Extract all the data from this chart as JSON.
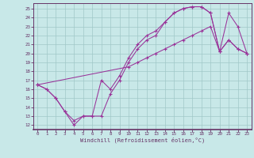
{
  "xlabel": "Windchill (Refroidissement éolien,°C)",
  "bg_color": "#c8e8e8",
  "grid_color": "#a0c8c8",
  "line_color": "#993399",
  "spine_color": "#663366",
  "tick_color": "#663366",
  "xlim_min": -0.5,
  "xlim_max": 23.5,
  "ylim_min": 11.5,
  "ylim_max": 25.6,
  "xticks": [
    0,
    1,
    2,
    3,
    4,
    5,
    6,
    7,
    8,
    9,
    10,
    11,
    12,
    13,
    14,
    15,
    16,
    17,
    18,
    19,
    20,
    21,
    22,
    23
  ],
  "yticks": [
    12,
    13,
    14,
    15,
    16,
    17,
    18,
    19,
    20,
    21,
    22,
    23,
    24,
    25
  ],
  "line1_x": [
    0,
    1,
    2,
    3,
    4,
    5,
    6,
    7,
    8,
    9,
    10,
    11,
    12,
    13,
    14,
    15,
    16,
    17,
    18,
    19,
    20,
    21,
    22,
    23
  ],
  "line1_y": [
    16.5,
    16.0,
    15.0,
    13.5,
    12.0,
    13.0,
    13.0,
    13.0,
    15.5,
    17.0,
    19.0,
    20.5,
    21.5,
    22.0,
    23.5,
    24.5,
    25.0,
    25.2,
    25.2,
    24.5,
    20.2,
    21.5,
    20.5,
    20.0
  ],
  "line2_x": [
    0,
    1,
    2,
    3,
    4,
    5,
    6,
    7,
    8,
    9,
    10,
    11,
    12,
    13,
    14,
    15,
    16,
    17,
    18,
    19,
    20,
    21,
    22,
    23
  ],
  "line2_y": [
    16.5,
    16.0,
    15.0,
    13.5,
    12.5,
    13.0,
    13.0,
    17.0,
    16.0,
    17.5,
    19.5,
    21.0,
    22.0,
    22.5,
    23.5,
    24.5,
    25.0,
    25.2,
    25.2,
    24.5,
    20.2,
    21.5,
    20.5,
    20.0
  ],
  "line3_x": [
    0,
    10,
    11,
    12,
    13,
    14,
    15,
    16,
    17,
    18,
    19,
    20,
    21,
    22,
    23
  ],
  "line3_y": [
    16.5,
    18.5,
    19.0,
    19.5,
    20.0,
    20.5,
    21.0,
    21.5,
    22.0,
    22.5,
    23.0,
    20.2,
    24.5,
    23.0,
    20.0
  ]
}
